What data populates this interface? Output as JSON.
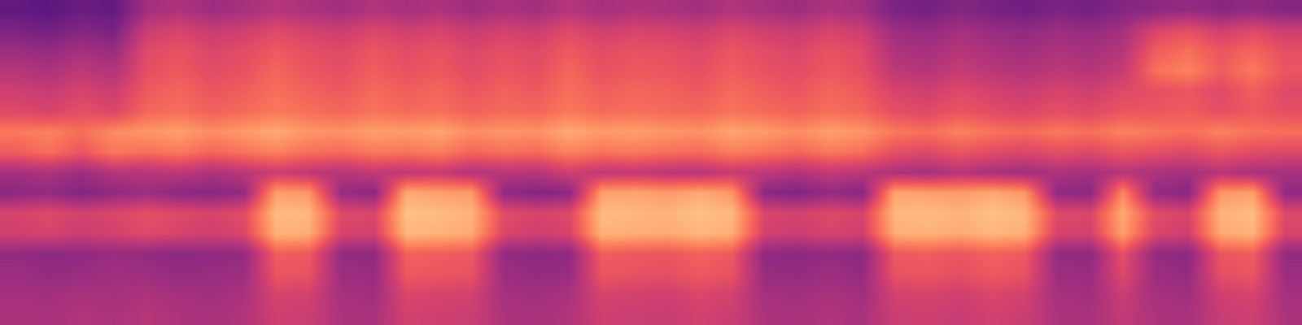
{
  "chart_data": {
    "type": "heatmap",
    "tick_labels": false,
    "zlim": [
      0,
      100
    ],
    "cells": [
      [
        30,
        28,
        32,
        30,
        45,
        48,
        44,
        46,
        50,
        47,
        45,
        49,
        46,
        48,
        44,
        47,
        45,
        50,
        46,
        48,
        47,
        45,
        49,
        46,
        44,
        48,
        45,
        36,
        34,
        38,
        35,
        33,
        36,
        34,
        38,
        40,
        42,
        39,
        41,
        38
      ],
      [
        36,
        34,
        38,
        35,
        55,
        58,
        54,
        56,
        60,
        57,
        55,
        59,
        56,
        58,
        54,
        57,
        55,
        60,
        56,
        58,
        57,
        55,
        59,
        56,
        54,
        58,
        55,
        44,
        42,
        46,
        43,
        41,
        44,
        42,
        46,
        58,
        62,
        56,
        60,
        55
      ],
      [
        44,
        42,
        46,
        43,
        60,
        63,
        59,
        61,
        65,
        62,
        60,
        64,
        61,
        63,
        59,
        62,
        60,
        65,
        61,
        63,
        62,
        60,
        64,
        61,
        59,
        63,
        60,
        48,
        46,
        50,
        47,
        45,
        48,
        46,
        50,
        66,
        70,
        64,
        68,
        62
      ],
      [
        50,
        48,
        52,
        49,
        62,
        65,
        61,
        63,
        68,
        64,
        62,
        66,
        63,
        65,
        61,
        64,
        62,
        68,
        63,
        65,
        64,
        62,
        66,
        63,
        61,
        65,
        62,
        52,
        50,
        54,
        51,
        49,
        52,
        50,
        54,
        70,
        74,
        66,
        72,
        64
      ],
      [
        56,
        54,
        58,
        55,
        65,
        68,
        64,
        66,
        70,
        67,
        65,
        69,
        66,
        68,
        64,
        67,
        65,
        70,
        66,
        68,
        67,
        65,
        69,
        66,
        64,
        68,
        65,
        58,
        56,
        60,
        57,
        55,
        58,
        56,
        60,
        62,
        64,
        60,
        66,
        60
      ],
      [
        60,
        58,
        62,
        59,
        68,
        70,
        67,
        69,
        72,
        70,
        68,
        71,
        69,
        70,
        67,
        69,
        68,
        72,
        69,
        70,
        69,
        68,
        71,
        69,
        67,
        70,
        68,
        62,
        60,
        64,
        61,
        59,
        62,
        60,
        64,
        64,
        66,
        62,
        65,
        62
      ],
      [
        72,
        74,
        70,
        76,
        78,
        80,
        76,
        79,
        82,
        78,
        77,
        80,
        79,
        81,
        76,
        78,
        77,
        82,
        79,
        80,
        78,
        77,
        81,
        79,
        76,
        80,
        78,
        72,
        70,
        74,
        71,
        69,
        72,
        70,
        74,
        72,
        70,
        74,
        71,
        70
      ],
      [
        66,
        70,
        64,
        72,
        70,
        72,
        68,
        71,
        74,
        70,
        69,
        72,
        71,
        73,
        68,
        70,
        69,
        74,
        71,
        72,
        70,
        69,
        73,
        71,
        68,
        72,
        70,
        62,
        60,
        64,
        61,
        59,
        62,
        60,
        64,
        62,
        60,
        64,
        61,
        60
      ],
      [
        46,
        48,
        44,
        50,
        50,
        52,
        48,
        51,
        55,
        52,
        50,
        53,
        52,
        54,
        49,
        51,
        50,
        56,
        52,
        53,
        51,
        50,
        54,
        52,
        49,
        53,
        51,
        48,
        46,
        50,
        47,
        45,
        48,
        46,
        50,
        48,
        46,
        50,
        47,
        46
      ],
      [
        40,
        42,
        38,
        41,
        44,
        40,
        39,
        42,
        80,
        78,
        43,
        40,
        82,
        80,
        79,
        41,
        38,
        40,
        80,
        81,
        79,
        82,
        78,
        40,
        37,
        42,
        39,
        81,
        80,
        79,
        82,
        78,
        41,
        40,
        75,
        42,
        39,
        78,
        80,
        41
      ],
      [
        58,
        60,
        57,
        59,
        62,
        60,
        58,
        61,
        86,
        85,
        60,
        59,
        87,
        86,
        84,
        61,
        58,
        60,
        86,
        85,
        84,
        87,
        85,
        59,
        57,
        60,
        58,
        85,
        86,
        84,
        87,
        85,
        60,
        59,
        82,
        61,
        58,
        84,
        86,
        60
      ],
      [
        56,
        58,
        55,
        57,
        60,
        58,
        56,
        59,
        84,
        83,
        58,
        57,
        85,
        84,
        82,
        59,
        56,
        58,
        84,
        83,
        82,
        85,
        83,
        57,
        55,
        58,
        56,
        83,
        84,
        82,
        85,
        83,
        58,
        57,
        80,
        59,
        56,
        82,
        84,
        58
      ],
      [
        42,
        40,
        41,
        43,
        42,
        40,
        41,
        42,
        66,
        65,
        42,
        41,
        67,
        66,
        65,
        42,
        40,
        41,
        66,
        65,
        64,
        67,
        65,
        41,
        40,
        42,
        40,
        65,
        66,
        64,
        67,
        65,
        42,
        41,
        62,
        42,
        40,
        64,
        66,
        42
      ],
      [
        44,
        42,
        43,
        45,
        44,
        42,
        43,
        44,
        64,
        63,
        44,
        43,
        65,
        64,
        63,
        44,
        42,
        43,
        64,
        63,
        62,
        65,
        63,
        43,
        42,
        44,
        42,
        63,
        64,
        62,
        65,
        63,
        44,
        43,
        60,
        44,
        42,
        62,
        64,
        44
      ],
      [
        46,
        45,
        47,
        46,
        48,
        46,
        45,
        47,
        58,
        57,
        46,
        45,
        59,
        58,
        57,
        46,
        45,
        47,
        58,
        57,
        56,
        59,
        57,
        46,
        45,
        47,
        45,
        57,
        58,
        56,
        59,
        57,
        46,
        45,
        55,
        46,
        45,
        56,
        58,
        46
      ],
      [
        48,
        47,
        49,
        48,
        50,
        48,
        47,
        49,
        56,
        55,
        48,
        47,
        57,
        56,
        55,
        48,
        47,
        49,
        56,
        55,
        54,
        57,
        55,
        48,
        47,
        49,
        47,
        55,
        56,
        54,
        57,
        55,
        48,
        47,
        53,
        48,
        47,
        54,
        56,
        48
      ]
    ]
  }
}
